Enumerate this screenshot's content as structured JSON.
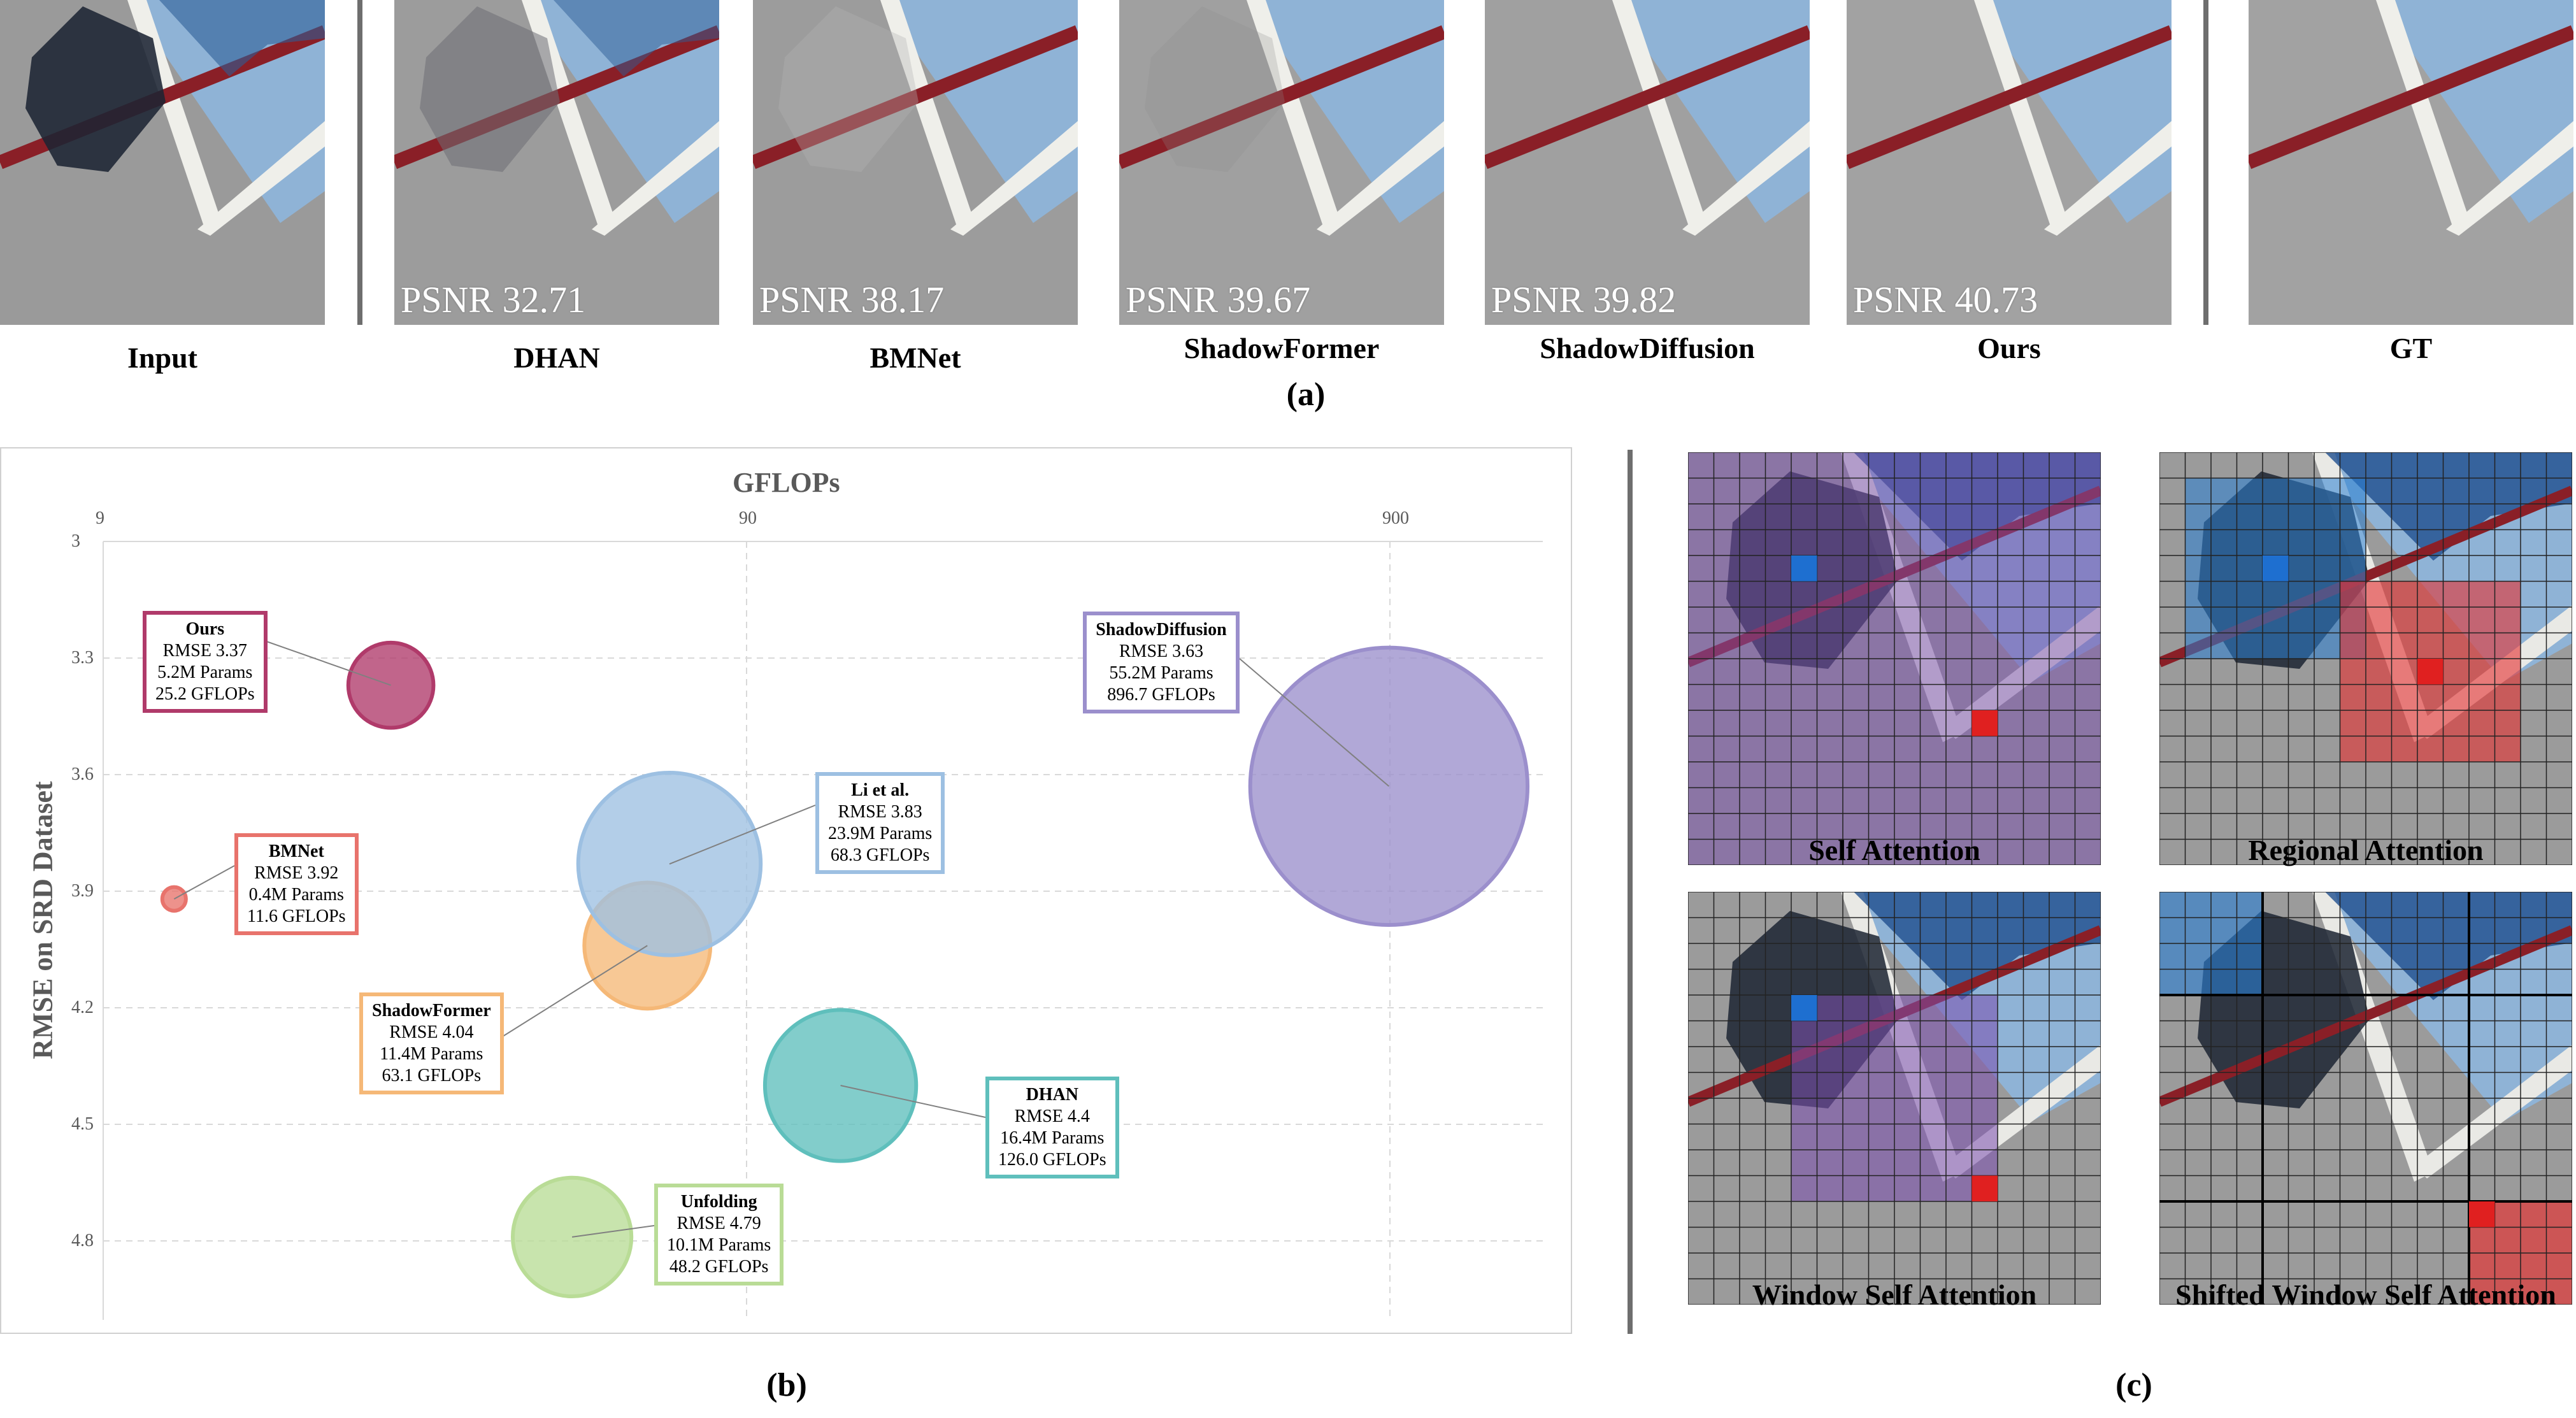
{
  "panel_a": {
    "label": "(a)",
    "thumbnails": [
      {
        "name": "Input",
        "psnr": null
      },
      {
        "name": "DHAN",
        "psnr": "PSNR 32.71"
      },
      {
        "name": "BMNet",
        "psnr": "PSNR 38.17"
      },
      {
        "name": "ShadowFormer",
        "psnr": "PSNR 39.67"
      },
      {
        "name": "ShadowDiffusion",
        "psnr": "PSNR 39.82"
      },
      {
        "name": "Ours",
        "psnr": "PSNR 40.73"
      },
      {
        "name": "GT",
        "psnr": null
      }
    ]
  },
  "panel_b": {
    "label": "(b)",
    "xlabel": "GFLOPs",
    "ylabel": "RMSE on SRD Dataset",
    "x_ticks": [
      "9",
      "90",
      "900"
    ],
    "y_ticks": [
      "3",
      "3.3",
      "3.6",
      "3.9",
      "4.2",
      "4.5",
      "4.8"
    ]
  },
  "chart_data": {
    "type": "scatter",
    "x_scale": "log",
    "xlabel": "GFLOPs",
    "ylabel": "RMSE on SRD Dataset",
    "xlim": [
      9,
      2300
    ],
    "ylim": [
      3,
      5.0
    ],
    "y_inverted": true,
    "series": [
      {
        "name": "Ours",
        "rmse": 3.37,
        "rmse_label": "RMSE 3.37",
        "params": "5.2M Params",
        "gflops_label": "25.2 GFLOPs",
        "gflops": 25.2,
        "params_m": 5.2,
        "color": "#b03a6a"
      },
      {
        "name": "BMNet",
        "rmse": 3.92,
        "rmse_label": "RMSE 3.92",
        "params": "0.4M Params",
        "gflops_label": "11.6 GFLOPs",
        "gflops": 11.6,
        "params_m": 0.4,
        "color": "#e8736c"
      },
      {
        "name": "ShadowFormer",
        "rmse": 4.04,
        "rmse_label": "RMSE 4.04",
        "params": "11.4M Params",
        "gflops_label": "63.1 GFLOPs",
        "gflops": 63.1,
        "params_m": 11.4,
        "color": "#f5b877"
      },
      {
        "name": "Li et al.",
        "rmse": 3.83,
        "rmse_label": "RMSE 3.83",
        "params": "23.9M Params",
        "gflops_label": "68.3 GFLOPs",
        "gflops": 68.3,
        "params_m": 23.9,
        "color": "#9dc0e2"
      },
      {
        "name": "ShadowDiffusion",
        "rmse": 3.63,
        "rmse_label": "RMSE 3.63",
        "params": "55.2M Params",
        "gflops_label": "896.7 GFLOPs",
        "gflops": 896.7,
        "params_m": 55.2,
        "color": "#9b8fcc"
      },
      {
        "name": "DHAN",
        "rmse": 4.4,
        "rmse_label": "RMSE 4.4",
        "params": "16.4M Params",
        "gflops_label": "126.0 GFLOPs",
        "gflops": 126.0,
        "params_m": 16.4,
        "color": "#5fbfbc"
      },
      {
        "name": "Unfolding",
        "rmse": 4.79,
        "rmse_label": "RMSE 4.79",
        "params": "10.1M Params",
        "gflops_label": "48.2 GFLOPs",
        "gflops": 48.2,
        "params_m": 10.1,
        "color": "#b9dc96"
      }
    ]
  },
  "panel_c": {
    "label": "(c)",
    "items": [
      {
        "title": "Self Attention"
      },
      {
        "title": "Regional Attention"
      },
      {
        "title": "Window Self Attention"
      },
      {
        "title": "Shifted Window Self Attention"
      }
    ]
  }
}
